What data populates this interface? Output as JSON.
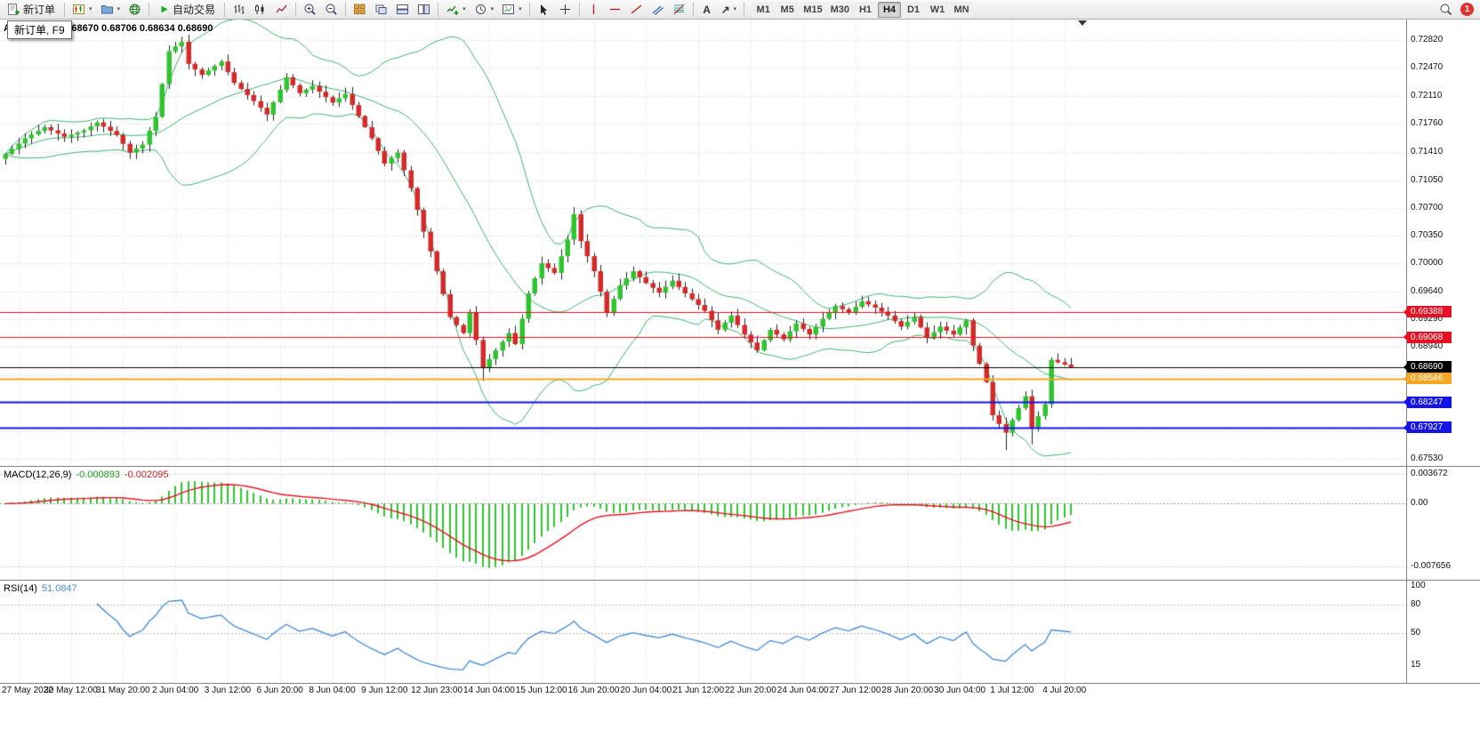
{
  "toolbar": {
    "new_order_label": "新订单",
    "auto_trading_label": "自动交易",
    "text_tool_glyph": "A",
    "arrows_tool_glyph": "↗",
    "caret_glyph": "▾",
    "timeframes": [
      "M1",
      "M5",
      "M15",
      "M30",
      "H1",
      "H4",
      "D1",
      "W1",
      "MN"
    ],
    "active_timeframe": "H4",
    "notification_count": "1",
    "icons": [
      "new-order",
      "new-chart",
      "profiles",
      "community",
      "auto-trading",
      "bar-chart",
      "candlestick-chart",
      "line-chart",
      "zoom-in",
      "zoom-out",
      "tile-windows",
      "cascade-windows",
      "tile-horizontal",
      "tile-vertical",
      "indicators-add",
      "periods",
      "templates",
      "cursor",
      "crosshair",
      "vertical-line",
      "horizontal-line",
      "trendline",
      "equidistant-channel",
      "fibonacci",
      "text",
      "arrows",
      "search",
      "notifications"
    ]
  },
  "tooltip": {
    "text": "新订单, F9"
  },
  "chart": {
    "title": "AUDUSD,H4 0.68670 0.68706 0.68634 0.68690",
    "price_axis_ticks": [
      "0.72820",
      "0.72470",
      "0.72110",
      "0.71760",
      "0.71410",
      "0.71050",
      "0.70700",
      "0.70350",
      "0.70000",
      "0.69640",
      "0.69290",
      "0.68940",
      "0.68590",
      "0.68240",
      "0.67880",
      "0.67530"
    ],
    "time_axis_labels": [
      "27 May 2022",
      "30 May 12:00",
      "31 May 20:00",
      "2 Jun 04:00",
      "3 Jun 12:00",
      "6 Jun 20:00",
      "8 Jun 04:00",
      "9 Jun 12:00",
      "12 Jun 23:00",
      "14 Jun 04:00",
      "15 Jun 12:00",
      "16 Jun 20:00",
      "20 Jun 04:00",
      "21 Jun 12:00",
      "22 Jun 20:00",
      "24 Jun 04:00",
      "27 Jun 12:00",
      "28 Jun 20:00",
      "30 Jun 04:00",
      "1 Jul 12:00",
      "4 Jul 20:00"
    ],
    "label_first_bar": 2,
    "label_every_bars": 8
  },
  "chart_data": {
    "type": "candlestick",
    "symbol": "AUDUSD",
    "timeframe": "H4",
    "ohlc": {
      "open": "0.68670",
      "high": "0.68706",
      "low": "0.68634",
      "close": "0.68690"
    },
    "bars_total": 164,
    "seed": 9,
    "wick_scale": 0.0008,
    "ylim": [
      0.6744,
      0.7308
    ],
    "close_anchors": [
      [
        0,
        0.7138
      ],
      [
        3,
        0.7158
      ],
      [
        6,
        0.7172
      ],
      [
        9,
        0.716
      ],
      [
        12,
        0.7168
      ],
      [
        14,
        0.7178
      ],
      [
        17,
        0.7162
      ],
      [
        19,
        0.714
      ],
      [
        21,
        0.715
      ],
      [
        23,
        0.7185
      ],
      [
        25,
        0.7268
      ],
      [
        27,
        0.728
      ],
      [
        28,
        0.7252
      ],
      [
        30,
        0.7238
      ],
      [
        33,
        0.7255
      ],
      [
        35,
        0.7228
      ],
      [
        38,
        0.7205
      ],
      [
        40,
        0.7188
      ],
      [
        43,
        0.7235
      ],
      [
        45,
        0.7215
      ],
      [
        47,
        0.7224
      ],
      [
        50,
        0.7203
      ],
      [
        52,
        0.7214
      ],
      [
        54,
        0.7186
      ],
      [
        56,
        0.7158
      ],
      [
        58,
        0.7126
      ],
      [
        60,
        0.714
      ],
      [
        62,
        0.7095
      ],
      [
        64,
        0.704
      ],
      [
        66,
        0.699
      ],
      [
        68,
        0.6932
      ],
      [
        70,
        0.6912
      ],
      [
        71,
        0.6938
      ],
      [
        73,
        0.6868
      ],
      [
        75,
        0.689
      ],
      [
        77,
        0.6912
      ],
      [
        78,
        0.6898
      ],
      [
        80,
        0.6962
      ],
      [
        82,
        0.7
      ],
      [
        84,
        0.6988
      ],
      [
        86,
        0.703
      ],
      [
        87,
        0.7062
      ],
      [
        88,
        0.7028
      ],
      [
        90,
        0.699
      ],
      [
        92,
        0.6938
      ],
      [
        94,
        0.6972
      ],
      [
        96,
        0.699
      ],
      [
        98,
        0.6975
      ],
      [
        100,
        0.6963
      ],
      [
        102,
        0.6978
      ],
      [
        104,
        0.6962
      ],
      [
        107,
        0.694
      ],
      [
        109,
        0.6916
      ],
      [
        111,
        0.6934
      ],
      [
        113,
        0.691
      ],
      [
        115,
        0.689
      ],
      [
        117,
        0.6916
      ],
      [
        119,
        0.6904
      ],
      [
        121,
        0.6924
      ],
      [
        123,
        0.691
      ],
      [
        125,
        0.693
      ],
      [
        127,
        0.6946
      ],
      [
        129,
        0.6938
      ],
      [
        131,
        0.6952
      ],
      [
        133,
        0.6944
      ],
      [
        135,
        0.6934
      ],
      [
        137,
        0.692
      ],
      [
        139,
        0.6932
      ],
      [
        141,
        0.6906
      ],
      [
        143,
        0.692
      ],
      [
        145,
        0.691
      ],
      [
        147,
        0.6928
      ],
      [
        148,
        0.6896
      ],
      [
        150,
        0.685
      ],
      [
        151,
        0.6808
      ],
      [
        153,
        0.6786
      ],
      [
        154,
        0.6802
      ],
      [
        156,
        0.6832
      ],
      [
        157,
        0.6792
      ],
      [
        159,
        0.6822
      ],
      [
        160,
        0.6878
      ],
      [
        162,
        0.6872
      ],
      [
        163,
        0.6869
      ]
    ],
    "wick_highs": [
      [
        27,
        0.7284
      ],
      [
        87,
        0.7071
      ]
    ],
    "wick_lows": [
      [
        73,
        0.6851
      ],
      [
        153,
        0.6764
      ],
      [
        157,
        0.6771
      ]
    ],
    "colors": {
      "bull": "#2fc42f",
      "bear": "#d42a2a",
      "wick": "#222222",
      "bollinger": "#3cb371",
      "grid": "#d4d4d4"
    },
    "horizontal_lines": [
      {
        "price": 0.69388,
        "label": "0.69388",
        "color": "#e81123",
        "width": 1
      },
      {
        "price": 0.69068,
        "label": "0.69068",
        "color": "#e81123",
        "width": 1
      },
      {
        "price": 0.6869,
        "label": "0.68690",
        "color": "#000000",
        "width": 1
      },
      {
        "price": 0.68546,
        "label": "0.68546",
        "color": "#f5a623",
        "width": 2
      },
      {
        "price": 0.68247,
        "label": "0.68247",
        "color": "#1414e8",
        "width": 2
      },
      {
        "price": 0.67927,
        "label": "0.67927",
        "color": "#1414e8",
        "width": 2
      }
    ],
    "indicators": {
      "bollinger": {
        "period": 20,
        "deviation": 2
      },
      "macd": {
        "name": "MACD(12,26,9)",
        "value_main": "-0.000893",
        "value_signal": "-0.002095",
        "params": [
          12,
          26,
          9
        ],
        "axis_labels": [
          "0.003672",
          "0.00",
          "-0.007656"
        ],
        "axis_values": [
          0.003672,
          0,
          -0.007656
        ],
        "ylim": [
          -0.0093,
          0.0045
        ],
        "histogram_color": "#2fc42f",
        "signal_color": "#e81123"
      },
      "rsi": {
        "name": "RSI(14)",
        "value": "51.0847",
        "period": 14,
        "axis_labels": [
          "100",
          "80",
          "50",
          "15"
        ],
        "axis_values": [
          100,
          80,
          50,
          15
        ],
        "levels": [
          80,
          50
        ],
        "ylim": [
          -4,
          106
        ],
        "color": "#4a90d9"
      }
    }
  }
}
